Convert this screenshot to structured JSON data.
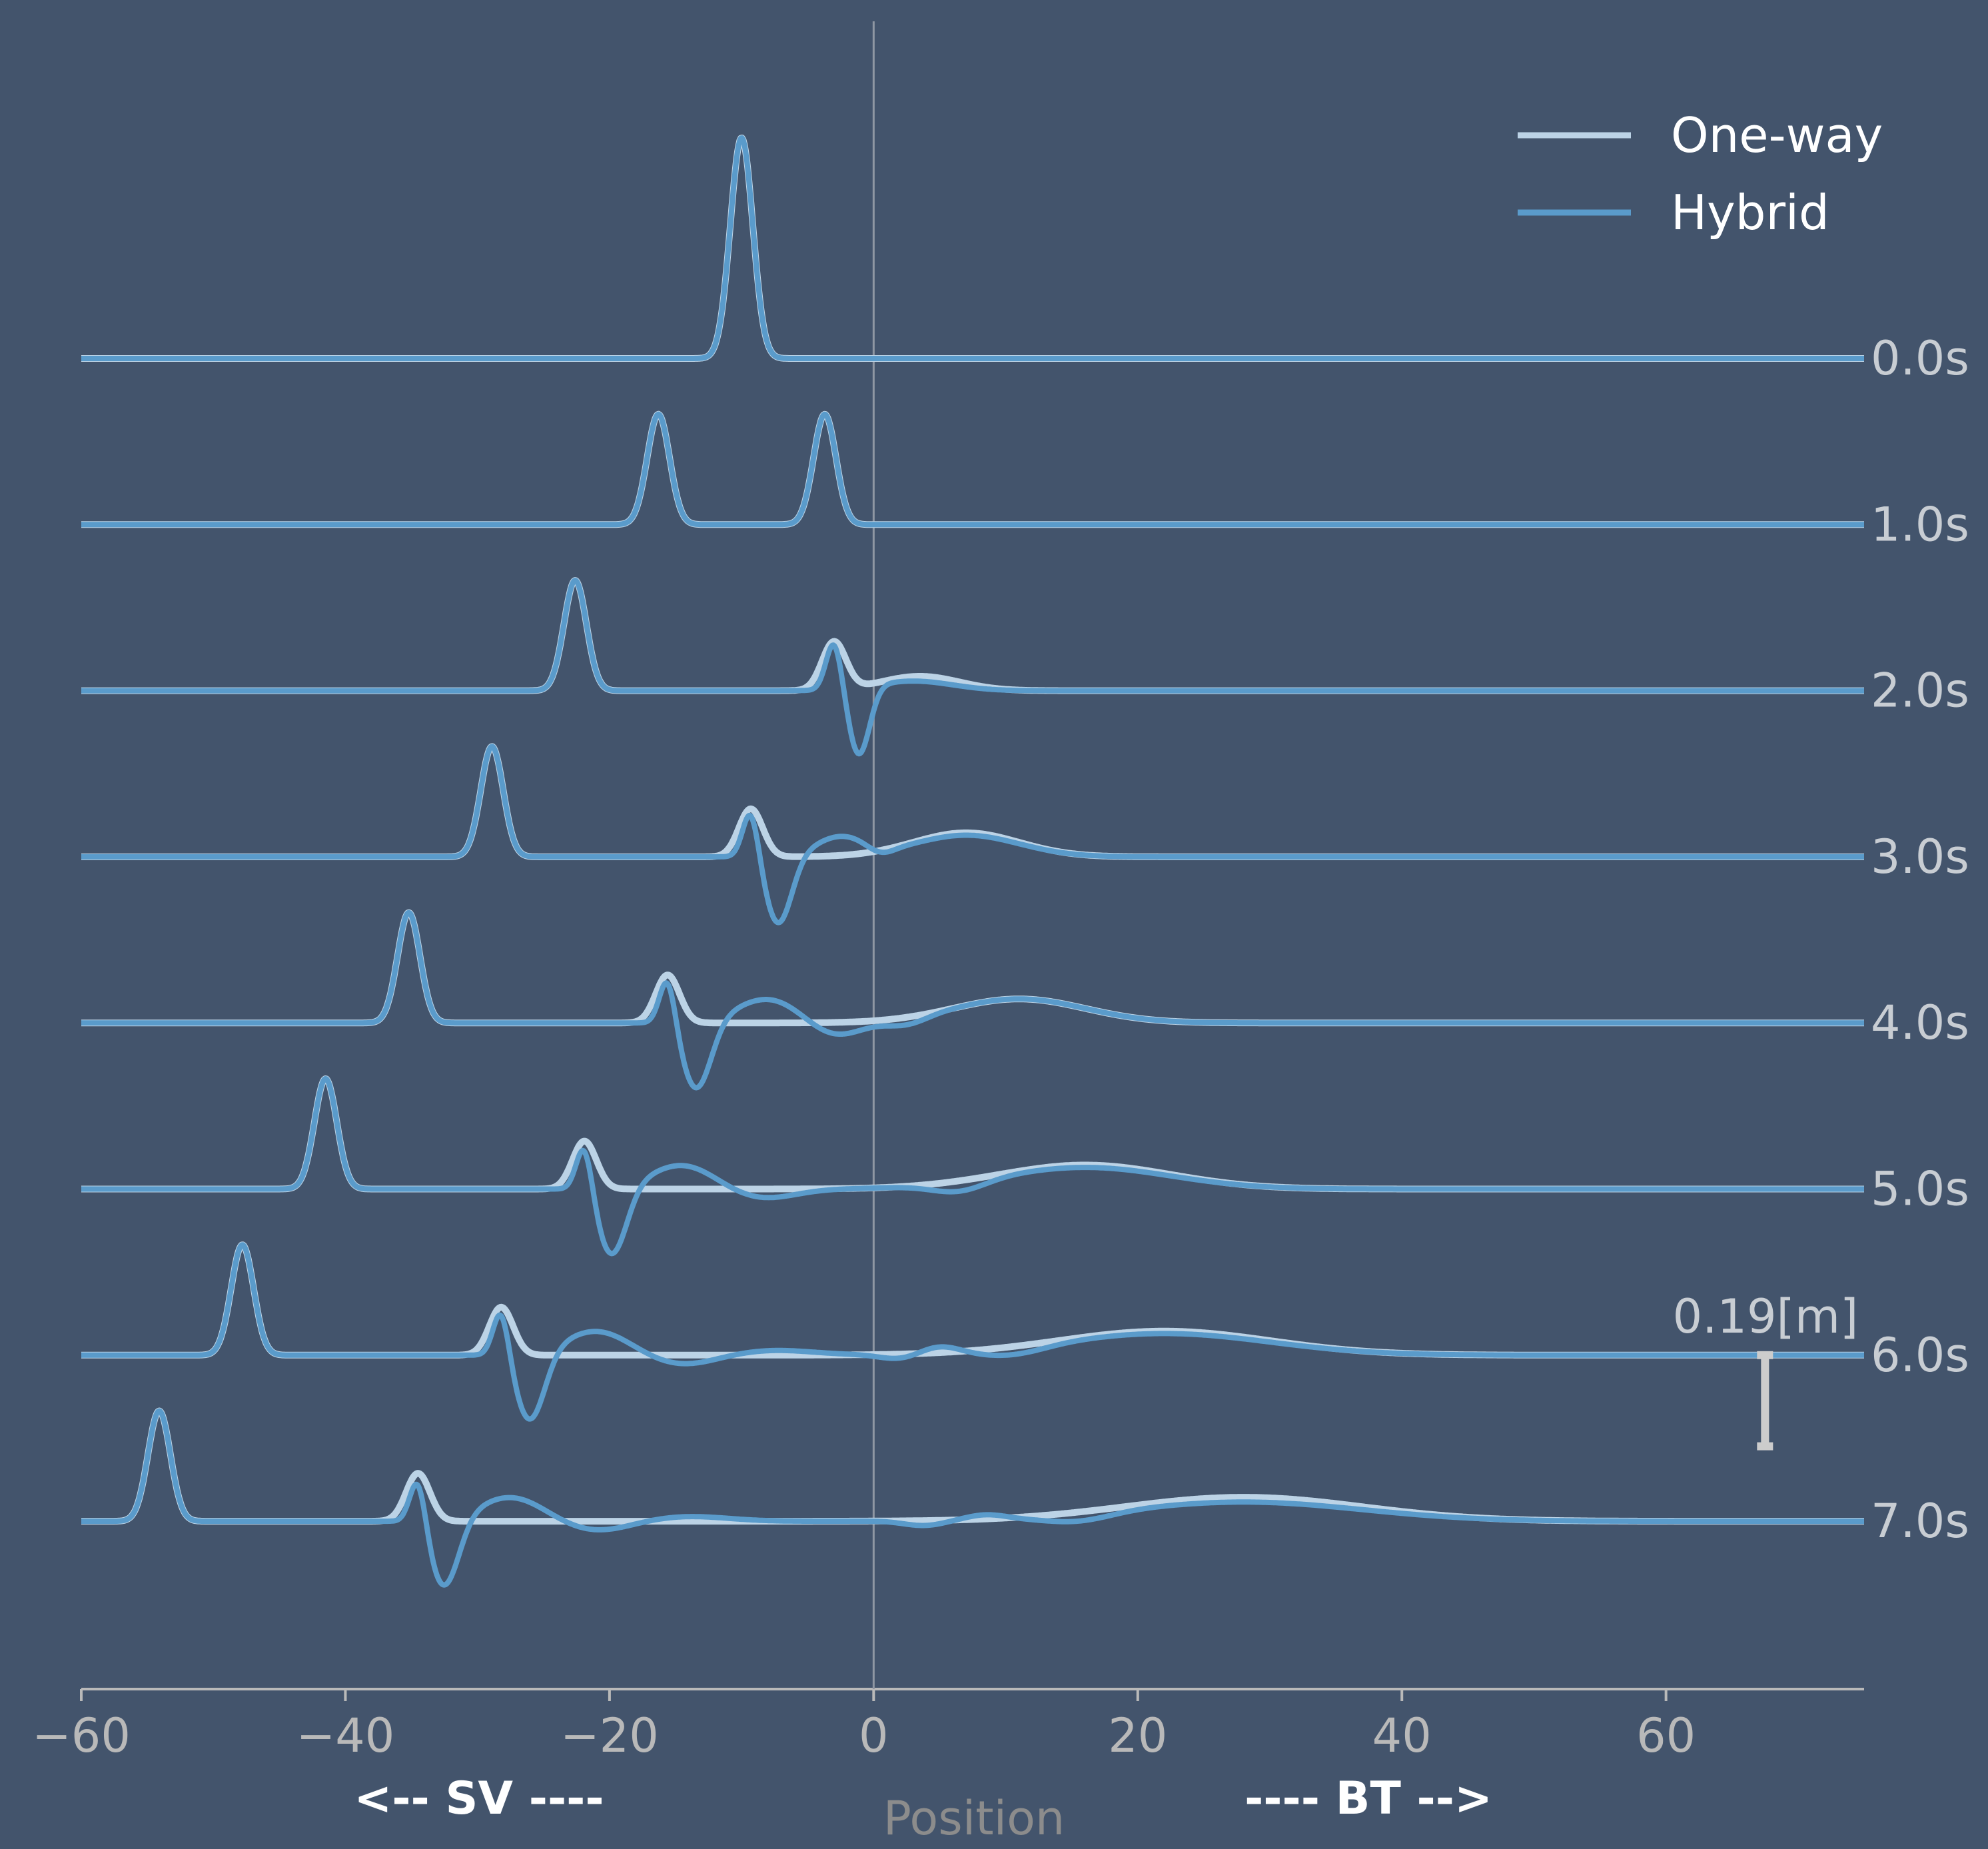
{
  "chart_data": {
    "type": "line",
    "title": "",
    "xlabel": "Position",
    "ylabel": "",
    "xlim": [
      -60,
      75
    ],
    "xticks": [
      -60,
      -40,
      -20,
      0,
      20,
      40,
      60
    ],
    "xtick_labels": [
      "−60",
      "−40",
      "−20",
      "0",
      "20",
      "40",
      "60"
    ],
    "grid": false,
    "legend_position": "top-right",
    "colors": {
      "background": "#43546c",
      "one_way": "#bcd3e6",
      "hybrid": "#5a9bcb",
      "axis": "#b9b9b9",
      "scale_bar": "#cccccc",
      "reference_line": "#8f97a3"
    },
    "direction_labels": {
      "left": "<-- SV ----",
      "right": "---- BT -->"
    },
    "scale_bar": {
      "label": "0.19[m]",
      "x": 67.5,
      "height_m": 0.19
    },
    "time_offsets": [
      "0.0s",
      "1.0s",
      "2.0s",
      "3.0s",
      "4.0s",
      "5.0s",
      "6.0s",
      "7.0s"
    ],
    "x": [
      -60,
      -58,
      -56,
      -54,
      -52,
      -50,
      -48,
      -46,
      -44,
      -42,
      -40,
      -38,
      -36,
      -34,
      -32,
      -30,
      -28,
      -26,
      -24,
      -22,
      -20,
      -18,
      -16,
      -14,
      -12,
      -10,
      -8,
      -6,
      -4,
      -2,
      0,
      2,
      4,
      6,
      8,
      10,
      12,
      14,
      16,
      18,
      20,
      22,
      24,
      26,
      28,
      30,
      32,
      34,
      36,
      38,
      40,
      42,
      44,
      46,
      48,
      50,
      52,
      54,
      56,
      58,
      60,
      62,
      64,
      66,
      68,
      70,
      72,
      74
    ],
    "series": [
      {
        "name": "One-way",
        "role": "one-way",
        "profiles": [
          {
            "time": "0.0s",
            "peaks": [
              {
                "x0": -10,
                "a": 0.46,
                "w": 0.85
              }
            ]
          },
          {
            "time": "1.0s",
            "peaks": [
              {
                "x0": -16.3,
                "a": 0.23,
                "w": 0.85
              },
              {
                "x0": -3.7,
                "a": 0.23,
                "w": 0.85
              }
            ]
          },
          {
            "time": "2.0s",
            "peaks": [
              {
                "x0": -22.6,
                "a": 0.23,
                "w": 0.85
              },
              {
                "x0": -3,
                "a": 0.1,
                "w": 0.9
              },
              {
                "x0": 3.5,
                "a": 0.03,
                "w": 3
              }
            ]
          },
          {
            "time": "3.0s",
            "peaks": [
              {
                "x0": -28.9,
                "a": 0.23,
                "w": 0.85
              },
              {
                "x0": -9.3,
                "a": 0.1,
                "w": 0.9
              },
              {
                "x0": 7,
                "a": 0.05,
                "w": 4
              }
            ]
          },
          {
            "time": "4.0s",
            "peaks": [
              {
                "x0": -35.2,
                "a": 0.23,
                "w": 0.85
              },
              {
                "x0": -15.6,
                "a": 0.1,
                "w": 0.9
              },
              {
                "x0": 11,
                "a": 0.05,
                "w": 5
              }
            ]
          },
          {
            "time": "5.0s",
            "peaks": [
              {
                "x0": -41.5,
                "a": 0.23,
                "w": 0.85
              },
              {
                "x0": -21.9,
                "a": 0.1,
                "w": 0.9
              },
              {
                "x0": 16,
                "a": 0.05,
                "w": 6.5
              }
            ]
          },
          {
            "time": "6.0s",
            "peaks": [
              {
                "x0": -47.8,
                "a": 0.23,
                "w": 0.85
              },
              {
                "x0": -28.2,
                "a": 0.1,
                "w": 0.9
              },
              {
                "x0": 22,
                "a": 0.05,
                "w": 8
              }
            ]
          },
          {
            "time": "7.0s",
            "peaks": [
              {
                "x0": -54.1,
                "a": 0.23,
                "w": 0.85
              },
              {
                "x0": -34.5,
                "a": 0.1,
                "w": 0.9
              },
              {
                "x0": 28,
                "a": 0.05,
                "w": 9
              }
            ]
          }
        ]
      },
      {
        "name": "Hybrid",
        "role": "hybrid",
        "profiles": [
          {
            "time": "0.0s",
            "peaks": [
              {
                "x0": -10,
                "a": 0.46,
                "w": 0.85
              }
            ]
          },
          {
            "time": "1.0s",
            "peaks": [
              {
                "x0": -16.3,
                "a": 0.23,
                "w": 0.85
              },
              {
                "x0": -3.7,
                "a": 0.23,
                "w": 0.85
              }
            ]
          },
          {
            "time": "2.0s",
            "peaks": [
              {
                "x0": -22.6,
                "a": 0.23,
                "w": 0.85
              },
              {
                "x0": -3,
                "a": 0.1,
                "w": 0.6
              },
              {
                "x0": -1.1,
                "a": -0.14,
                "w": 0.8
              },
              {
                "x0": 3,
                "a": 0.02,
                "w": 3
              }
            ]
          },
          {
            "time": "3.0s",
            "peaks": [
              {
                "x0": -28.9,
                "a": 0.23,
                "w": 0.85
              },
              {
                "x0": -9.3,
                "a": 0.1,
                "w": 0.6
              },
              {
                "x0": -7.2,
                "a": -0.14,
                "w": 1
              },
              {
                "x0": -2.5,
                "a": 0.04,
                "w": 2
              },
              {
                "x0": 0.5,
                "a": -0.015,
                "w": 1
              },
              {
                "x0": 7,
                "a": 0.045,
                "w": 4
              }
            ]
          },
          {
            "time": "4.0s",
            "peaks": [
              {
                "x0": -35.2,
                "a": 0.23,
                "w": 0.85
              },
              {
                "x0": -15.6,
                "a": 0.1,
                "w": 0.6
              },
              {
                "x0": -13.4,
                "a": -0.14,
                "w": 1.1
              },
              {
                "x0": -8,
                "a": 0.05,
                "w": 2.5
              },
              {
                "x0": -3,
                "a": -0.03,
                "w": 2
              },
              {
                "x0": 2.5,
                "a": -0.015,
                "w": 1.5
              },
              {
                "x0": 11,
                "a": 0.05,
                "w": 5
              }
            ]
          },
          {
            "time": "5.0s",
            "peaks": [
              {
                "x0": -41.5,
                "a": 0.23,
                "w": 0.85
              },
              {
                "x0": -21.9,
                "a": 0.1,
                "w": 0.6
              },
              {
                "x0": -19.8,
                "a": -0.14,
                "w": 1.1
              },
              {
                "x0": -14.5,
                "a": 0.05,
                "w": 2.5
              },
              {
                "x0": -8.5,
                "a": -0.02,
                "w": 2.5
              },
              {
                "x0": 6.5,
                "a": -0.02,
                "w": 2
              },
              {
                "x0": 16,
                "a": 0.045,
                "w": 6.5
              }
            ]
          },
          {
            "time": "6.0s",
            "peaks": [
              {
                "x0": -47.8,
                "a": 0.23,
                "w": 0.85
              },
              {
                "x0": -28.2,
                "a": 0.1,
                "w": 0.6
              },
              {
                "x0": -26,
                "a": -0.14,
                "w": 1.1
              },
              {
                "x0": -21,
                "a": 0.05,
                "w": 2.5
              },
              {
                "x0": -14.5,
                "a": -0.02,
                "w": 2.5
              },
              {
                "x0": -7.5,
                "a": 0.01,
                "w": 3
              },
              {
                "x0": 2,
                "a": -0.01,
                "w": 1.5
              },
              {
                "x0": 5,
                "a": 0.015,
                "w": 1.5
              },
              {
                "x0": 10.5,
                "a": -0.015,
                "w": 2.5
              },
              {
                "x0": 22,
                "a": 0.045,
                "w": 8
              }
            ]
          },
          {
            "time": "7.0s",
            "peaks": [
              {
                "x0": -54.1,
                "a": 0.23,
                "w": 0.85
              },
              {
                "x0": -34.5,
                "a": 0.1,
                "w": 0.6
              },
              {
                "x0": -32.5,
                "a": -0.14,
                "w": 1.1
              },
              {
                "x0": -27.5,
                "a": 0.05,
                "w": 2.5
              },
              {
                "x0": -21,
                "a": -0.02,
                "w": 2.5
              },
              {
                "x0": -14,
                "a": 0.01,
                "w": 3
              },
              {
                "x0": 3.8,
                "a": -0.01,
                "w": 1.5
              },
              {
                "x0": 8.5,
                "a": 0.01,
                "w": 1.5
              },
              {
                "x0": 15.5,
                "a": -0.015,
                "w": 2.5
              },
              {
                "x0": 28,
                "a": 0.04,
                "w": 9
              }
            ]
          }
        ]
      }
    ]
  }
}
